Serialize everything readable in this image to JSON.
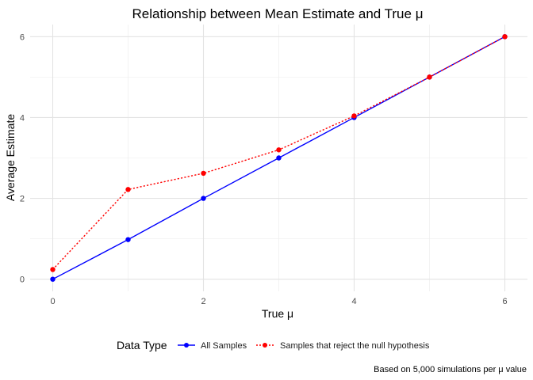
{
  "chart_data": {
    "type": "line",
    "title": "Relationship between Mean Estimate and True μ",
    "xlabel": "True μ",
    "ylabel": "Average Estimate",
    "caption": "Based on 5,000 simulations per μ value",
    "xlim": [
      -0.3,
      6.3
    ],
    "ylim": [
      -0.3,
      6.3
    ],
    "x_ticks": [
      0,
      2,
      4,
      6
    ],
    "y_ticks": [
      0,
      2,
      4,
      6
    ],
    "grid": true,
    "legend": {
      "title": "Data Type",
      "placement": "bottom"
    },
    "x": [
      0,
      1,
      2,
      3,
      4,
      5,
      6
    ],
    "series": [
      {
        "name": "All Samples",
        "color": "#0000ff",
        "line_style": "solid",
        "values": [
          0.0,
          0.98,
          2.0,
          3.0,
          4.0,
          5.0,
          6.0
        ]
      },
      {
        "name": "Samples that reject the null hypothesis",
        "color": "#ff0000",
        "line_style": "dotted",
        "values": [
          0.24,
          2.22,
          2.62,
          3.2,
          4.04,
          5.0,
          6.0
        ]
      }
    ]
  }
}
